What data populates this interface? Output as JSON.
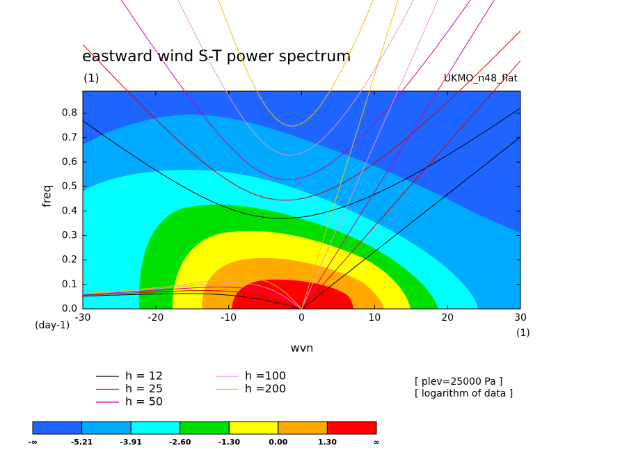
{
  "chart_data": {
    "type": "contour",
    "title": "eastward wind S-T power spectrum",
    "subtitle": "(1)",
    "annotation": "UKMO_n48_flat",
    "x_label": "wvn",
    "y_label": "freq",
    "x_unit": "(1)",
    "y_unit": "(day-1)",
    "xlim": [
      -30,
      30
    ],
    "xticks": [
      -30,
      -20,
      -10,
      0,
      10,
      20,
      30
    ],
    "ylim": [
      0,
      0.89
    ],
    "yticks": [
      {
        "value": 0,
        "label": "0.0"
      },
      {
        "value": 0.1,
        "label": "0.1"
      },
      {
        "value": 0.2,
        "label": "0.2"
      },
      {
        "value": 0.3,
        "label": "0.3"
      },
      {
        "value": 0.4,
        "label": "0.4"
      },
      {
        "value": 0.5,
        "label": "0.5"
      },
      {
        "value": 0.6,
        "label": "0.6"
      },
      {
        "value": 0.7,
        "label": "0.7"
      },
      {
        "value": 0.8,
        "label": "0.8"
      }
    ],
    "series": [
      {
        "name": "h = 12",
        "h": 12,
        "color": "#000000"
      },
      {
        "name": "h = 25",
        "h": 25,
        "color": "#d40000"
      },
      {
        "name": "h = 50",
        "h": 50,
        "color": "#d4009a"
      },
      {
        "name": "h =100",
        "h": 100,
        "color": "#e890e0"
      },
      {
        "name": "h =200",
        "h": 200,
        "color": "#f0c000"
      }
    ],
    "notes": [
      "[ plev=25000 Pa ]",
      "[ logarithm of data ]"
    ],
    "colorbar": {
      "ends": [
        "-∞",
        "∞"
      ],
      "levels": [
        {
          "value": -5.21,
          "label": "-5.21"
        },
        {
          "value": -3.91,
          "label": "-3.91"
        },
        {
          "value": -2.6,
          "label": "-2.60"
        },
        {
          "value": -1.3,
          "label": "-1.30"
        },
        {
          "value": 0,
          "label": "0.00"
        },
        {
          "value": 1.3,
          "label": "1.30"
        }
      ],
      "colors": [
        "#1e64ff",
        "#00aaff",
        "#00ffff",
        "#00e000",
        "#ffff00",
        "#ffaa00",
        "#ff0000"
      ]
    }
  }
}
